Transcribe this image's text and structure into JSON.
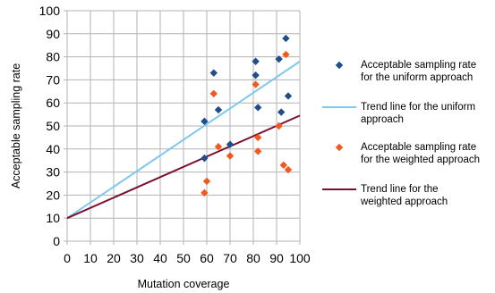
{
  "chart_data": {
    "type": "scatter",
    "title": "",
    "xlabel": "Mutation coverage",
    "ylabel": "Acceptable sampling rate",
    "xlim": [
      0,
      100
    ],
    "ylim": [
      0,
      100
    ],
    "x_ticks": [
      "0",
      "10",
      "20",
      "30",
      "40",
      "50",
      "60",
      "70",
      "80",
      "90",
      "100"
    ],
    "y_ticks": [
      "0",
      "10",
      "20",
      "30",
      "40",
      "50",
      "60",
      "70",
      "80",
      "90",
      "100"
    ],
    "grid": true,
    "legend_position": "right",
    "series": [
      {
        "name_lines": [
          " Acceptable sampling rate",
          "for the uniform approach"
        ],
        "kind": "points",
        "marker": "diamond",
        "color": "#1f4e8c",
        "points": [
          [
            59,
            52
          ],
          [
            63,
            73
          ],
          [
            65,
            57
          ],
          [
            59,
            36
          ],
          [
            70,
            42
          ],
          [
            81,
            78
          ],
          [
            81,
            72
          ],
          [
            82,
            58
          ],
          [
            91,
            79
          ],
          [
            92,
            56
          ],
          [
            94,
            88
          ],
          [
            95,
            63
          ]
        ]
      },
      {
        "name_lines": [
          "Trend line for the uniform",
          "approach"
        ],
        "kind": "line",
        "color": "#7fc8ee",
        "line": [
          [
            0,
            10
          ],
          [
            100,
            78
          ]
        ]
      },
      {
        "name_lines": [
          "Acceptable sampling rate",
          "for the weighted approach"
        ],
        "kind": "points",
        "marker": "diamond",
        "color": "#f05a1e",
        "points": [
          [
            59,
            21
          ],
          [
            60,
            26
          ],
          [
            63,
            64
          ],
          [
            65,
            41
          ],
          [
            70,
            37
          ],
          [
            81,
            68
          ],
          [
            82,
            45
          ],
          [
            82,
            39
          ],
          [
            91,
            50
          ],
          [
            93,
            33
          ],
          [
            95,
            31
          ],
          [
            94,
            81
          ]
        ]
      },
      {
        "name_lines": [
          "Trend line for the",
          "weighted approach"
        ],
        "kind": "line",
        "color": "#7a1030",
        "line": [
          [
            0,
            10
          ],
          [
            100,
            54.5
          ]
        ]
      }
    ]
  }
}
